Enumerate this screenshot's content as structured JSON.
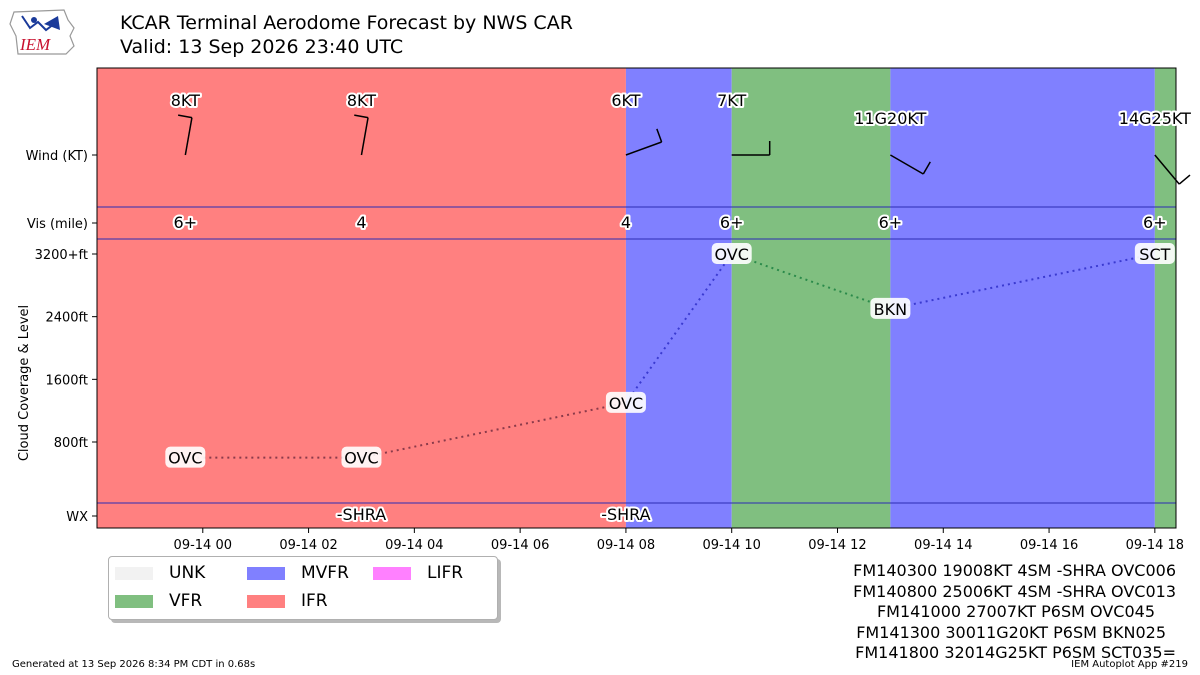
{
  "header": {
    "title": "KCAR Terminal Aerodome Forecast by NWS CAR",
    "subtitle": "Valid: 13 Sep 2026 23:40 UTC",
    "logo_text": "IEM"
  },
  "chart_data": {
    "type": "timeline",
    "x_ticks": [
      "09-14 00",
      "09-14 02",
      "09-14 04",
      "09-14 06",
      "09-14 08",
      "09-14 10",
      "09-14 12",
      "09-14 14",
      "09-14 16",
      "09-14 18"
    ],
    "x_tick_hours": [
      0,
      2,
      4,
      6,
      8,
      10,
      12,
      14,
      16,
      18
    ],
    "xlim_hours": [
      -2.0,
      18.4
    ],
    "row_labels": {
      "wind": "Wind (KT)",
      "vis": "Vis (mile)",
      "wx": "WX"
    },
    "ylabel": "Cloud Coverage & Level",
    "y_ticks": [
      "3200+ft",
      "2400ft",
      "1600ft",
      "800ft"
    ],
    "y_tick_values": [
      3200,
      2400,
      1600,
      800
    ],
    "ylim": [
      -1000,
      3400
    ],
    "colors": {
      "UNK": "#f2f2f2",
      "VFR": "#80bf80",
      "MVFR": "#8080ff",
      "IFR": "#ff8080",
      "LIFR": "#ff80ff"
    },
    "categories": [
      {
        "cat": "IFR",
        "start": -2.0,
        "end": 8.0
      },
      {
        "cat": "MVFR",
        "start": 8.0,
        "end": 10.0
      },
      {
        "cat": "VFR",
        "start": 10.0,
        "end": 13.0
      },
      {
        "cat": "MVFR",
        "start": 13.0,
        "end": 18.0
      },
      {
        "cat": "VFR",
        "start": 18.0,
        "end": 18.4
      }
    ],
    "wind": [
      {
        "hour": -0.33,
        "label": "8KT",
        "dir": 190
      },
      {
        "hour": 3.0,
        "label": "8KT",
        "dir": 190
      },
      {
        "hour": 8.0,
        "label": "6KT",
        "dir": 250
      },
      {
        "hour": 10.0,
        "label": "7KT",
        "dir": 270
      },
      {
        "hour": 13.0,
        "label": "11G20KT",
        "dir": 300
      },
      {
        "hour": 18.0,
        "label": "14G25KT",
        "dir": 320
      }
    ],
    "vis": [
      {
        "hour": -0.33,
        "label": "6+"
      },
      {
        "hour": 3.0,
        "label": "4"
      },
      {
        "hour": 8.0,
        "label": "4"
      },
      {
        "hour": 10.0,
        "label": "6+"
      },
      {
        "hour": 13.0,
        "label": "6+"
      },
      {
        "hour": 18.0,
        "label": "6+"
      }
    ],
    "clouds": [
      {
        "hour": -0.33,
        "label": "OVC",
        "level": 600
      },
      {
        "hour": 3.0,
        "label": "OVC",
        "level": 600
      },
      {
        "hour": 8.0,
        "label": "OVC",
        "level": 1300
      },
      {
        "hour": 10.0,
        "label": "OVC",
        "level": 4500
      },
      {
        "hour": 13.0,
        "label": "BKN",
        "level": 2500
      },
      {
        "hour": 18.0,
        "label": "SCT",
        "level": 3500
      }
    ],
    "cloud_plot_levels_note": "levels above 3200 are drawn at 3200+ line",
    "weather": [
      {
        "hour": 3.0,
        "label": "-SHRA"
      },
      {
        "hour": 8.0,
        "label": "-SHRA"
      }
    ]
  },
  "legend": [
    {
      "label": "UNK",
      "color": "#f2f2f2"
    },
    {
      "label": "MVFR",
      "color": "#8080ff"
    },
    {
      "label": "LIFR",
      "color": "#ff80ff"
    },
    {
      "label": "VFR",
      "color": "#80bf80"
    },
    {
      "label": "IFR",
      "color": "#ff8080"
    }
  ],
  "taf_lines": [
    "FM140300 19008KT 4SM -SHRA OVC006",
    "FM140800 25006KT 4SM -SHRA OVC013",
    "FM141000 27007KT P6SM OVC045",
    "FM141300 30011G20KT P6SM BKN025",
    "FM141800 32014G25KT P6SM SCT035="
  ],
  "footer": {
    "generated": "Generated at 13 Sep 2026 8:34 PM CDT in 0.68s",
    "app": "IEM Autoplot App #219"
  }
}
